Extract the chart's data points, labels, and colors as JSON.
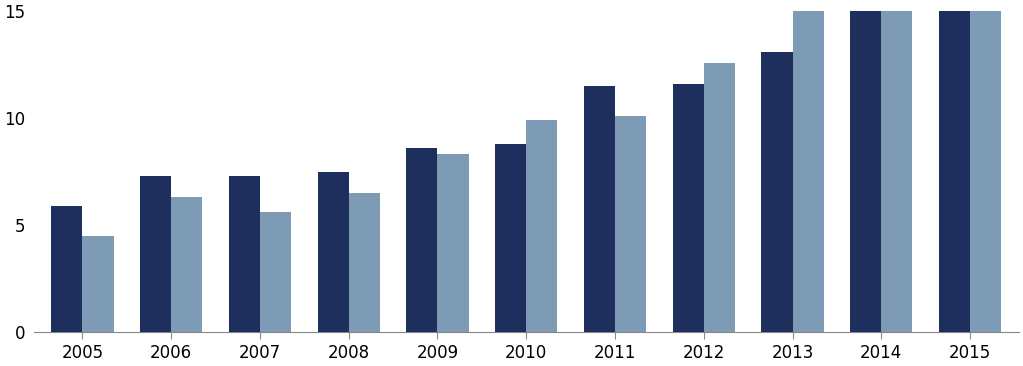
{
  "years": [
    2005,
    2006,
    2007,
    2008,
    2009,
    2010,
    2011,
    2012,
    2013,
    2014,
    2015
  ],
  "dark_blue": [
    5.9,
    7.3,
    7.3,
    7.5,
    8.6,
    8.8,
    11.5,
    11.6,
    13.1,
    15.2,
    15.2
  ],
  "light_blue": [
    4.5,
    6.3,
    5.6,
    6.5,
    8.3,
    9.9,
    10.1,
    12.6,
    15.1,
    15.1,
    15.1
  ],
  "color_dark": "#1e2f5e",
  "color_light": "#7d9bb5",
  "ylim": [
    0,
    15
  ],
  "yticks": [
    0,
    5,
    10,
    15
  ],
  "background": "#ffffff",
  "bar_width": 0.35
}
